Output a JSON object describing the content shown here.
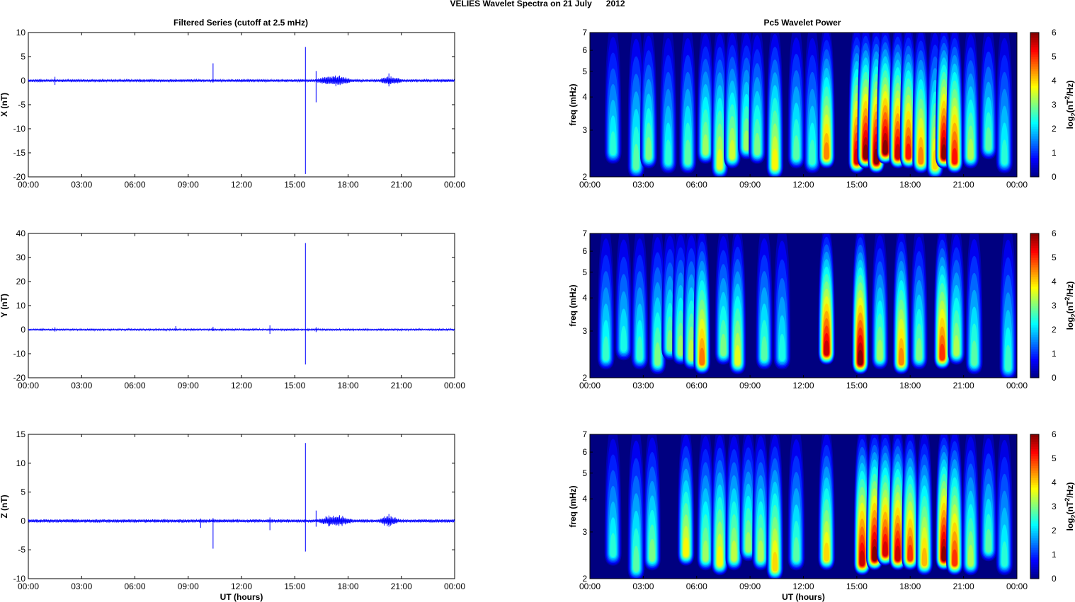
{
  "figure": {
    "suptitle": "VELIES Wavelet Spectra on 21 July      2012",
    "left_title": "Filtered Series (cutoff at 2.5 mHz)",
    "right_title": "Pc5 Wavelet Power"
  },
  "chart_data": [
    {
      "type": "line",
      "panel": "x-filtered",
      "xlabel": "",
      "ylabel": "X (nT)",
      "xticks": [
        "00:00",
        "03:00",
        "06:00",
        "09:00",
        "12:00",
        "15:00",
        "18:00",
        "21:00",
        "00:00"
      ],
      "xlim": [
        0,
        24
      ],
      "ylim": [
        -20,
        10
      ],
      "yticks": [
        10,
        5,
        0,
        -5,
        -10,
        -15,
        -20
      ],
      "color": "#0000ff",
      "noise_amplitude": 0.3,
      "spikes": [
        [
          1.5,
          0.8,
          -0.9
        ],
        [
          10.4,
          3.6,
          -0.4
        ],
        [
          15.6,
          7.0,
          -19.4
        ],
        [
          16.2,
          2.0,
          -4.5
        ],
        [
          20.3,
          1.5,
          -1.2
        ]
      ],
      "wave_packets": [
        [
          16.0,
          18.4,
          1.2
        ],
        [
          19.6,
          21.2,
          1.0
        ]
      ]
    },
    {
      "type": "line",
      "panel": "y-filtered",
      "xlabel": "",
      "ylabel": "Y (nT)",
      "xticks": [
        "00:00",
        "03:00",
        "06:00",
        "09:00",
        "12:00",
        "15:00",
        "18:00",
        "21:00",
        "00:00"
      ],
      "xlim": [
        0,
        24
      ],
      "ylim": [
        -20,
        40
      ],
      "yticks": [
        40,
        30,
        20,
        10,
        0,
        -10,
        -20
      ],
      "color": "#0000ff",
      "noise_amplitude": 0.4,
      "spikes": [
        [
          1.5,
          1.0,
          -0.8
        ],
        [
          8.3,
          1.5,
          -0.5
        ],
        [
          10.4,
          1.2,
          -0.6
        ],
        [
          13.6,
          1.8,
          -1.8
        ],
        [
          15.6,
          36.0,
          -14.5
        ],
        [
          16.2,
          1.0,
          -1.0
        ]
      ],
      "wave_packets": []
    },
    {
      "type": "line",
      "panel": "z-filtered",
      "xlabel": "UT (hours)",
      "ylabel": "Z (nT)",
      "xticks": [
        "00:00",
        "03:00",
        "06:00",
        "09:00",
        "12:00",
        "15:00",
        "18:00",
        "21:00",
        "00:00"
      ],
      "xlim": [
        0,
        24
      ],
      "ylim": [
        -10,
        15
      ],
      "yticks": [
        15,
        10,
        5,
        0,
        -5,
        -10
      ],
      "color": "#0000ff",
      "noise_amplitude": 0.3,
      "spikes": [
        [
          9.7,
          0.4,
          -1.2
        ],
        [
          10.4,
          0.5,
          -4.8
        ],
        [
          13.6,
          0.6,
          -1.6
        ],
        [
          15.6,
          13.5,
          -5.3
        ],
        [
          16.2,
          1.8,
          -1.0
        ],
        [
          20.3,
          1.2,
          -1.0
        ]
      ],
      "wave_packets": [
        [
          16.0,
          18.5,
          1.1
        ],
        [
          19.6,
          21.0,
          1.0
        ]
      ]
    },
    {
      "type": "heatmap",
      "panel": "x-wavelet",
      "xlabel": "",
      "ylabel": "freq (mHz)",
      "xticks": [
        "00:00",
        "03:00",
        "06:00",
        "09:00",
        "12:00",
        "15:00",
        "18:00",
        "21:00",
        "00:00"
      ],
      "xlim": [
        0,
        24
      ],
      "ylim": [
        2,
        7
      ],
      "yscale": "log",
      "yticks": [
        2,
        3,
        4,
        5,
        6,
        7
      ],
      "colorbar": {
        "label": "log2(nT2/Hz)",
        "range": [
          0,
          6
        ],
        "ticks": [
          0,
          1,
          2,
          3,
          4,
          5,
          6
        ],
        "colormap": "jet"
      },
      "bursts": [
        [
          1.3,
          2.5,
          2.5
        ],
        [
          2.6,
          2.2,
          2.8
        ],
        [
          3.3,
          2.4,
          3.0
        ],
        [
          4.4,
          2.3,
          2.5
        ],
        [
          5.5,
          2.3,
          2.8
        ],
        [
          6.5,
          2.5,
          3.2
        ],
        [
          7.3,
          2.2,
          3.6
        ],
        [
          8.0,
          2.4,
          3.5
        ],
        [
          8.8,
          2.6,
          3.2
        ],
        [
          9.4,
          2.5,
          3.0
        ],
        [
          10.4,
          2.2,
          3.8
        ],
        [
          11.6,
          2.4,
          2.8
        ],
        [
          12.5,
          2.3,
          2.6
        ],
        [
          13.3,
          2.4,
          4.5
        ],
        [
          15.0,
          2.3,
          5.5
        ],
        [
          15.5,
          2.4,
          6.0
        ],
        [
          16.1,
          2.3,
          6.0
        ],
        [
          16.6,
          2.5,
          6.0
        ],
        [
          17.3,
          2.4,
          5.6
        ],
        [
          17.9,
          2.4,
          5.2
        ],
        [
          18.6,
          2.3,
          4.5
        ],
        [
          19.4,
          2.2,
          4.0
        ],
        [
          19.9,
          2.4,
          6.0
        ],
        [
          20.5,
          2.3,
          5.2
        ],
        [
          21.4,
          2.4,
          3.3
        ],
        [
          22.4,
          2.6,
          2.8
        ],
        [
          23.3,
          2.3,
          2.5
        ]
      ]
    },
    {
      "type": "heatmap",
      "panel": "y-wavelet",
      "xlabel": "",
      "ylabel": "freq (mHz)",
      "xticks": [
        "00:00",
        "03:00",
        "06:00",
        "09:00",
        "12:00",
        "15:00",
        "18:00",
        "21:00",
        "00:00"
      ],
      "xlim": [
        0,
        24
      ],
      "ylim": [
        2,
        7
      ],
      "yscale": "log",
      "yticks": [
        2,
        3,
        4,
        5,
        6,
        7
      ],
      "colorbar": {
        "label": "log2(nT2/Hz)",
        "range": [
          0,
          6
        ],
        "ticks": [
          0,
          1,
          2,
          3,
          4,
          5,
          6
        ],
        "colormap": "jet"
      },
      "bursts": [
        [
          0.9,
          2.4,
          2.6
        ],
        [
          1.9,
          2.6,
          2.4
        ],
        [
          2.8,
          2.4,
          2.6
        ],
        [
          3.8,
          2.3,
          3.0
        ],
        [
          4.5,
          2.6,
          3.0
        ],
        [
          5.1,
          2.5,
          3.2
        ],
        [
          5.7,
          2.4,
          3.4
        ],
        [
          6.3,
          2.3,
          4.6
        ],
        [
          7.5,
          2.5,
          3.0
        ],
        [
          8.3,
          2.3,
          3.6
        ],
        [
          9.8,
          2.4,
          2.8
        ],
        [
          10.8,
          2.4,
          2.4
        ],
        [
          13.3,
          2.5,
          5.6
        ],
        [
          15.2,
          2.3,
          6.0
        ],
        [
          16.3,
          2.4,
          3.2
        ],
        [
          17.5,
          2.3,
          4.5
        ],
        [
          18.5,
          2.4,
          3.0
        ],
        [
          19.8,
          2.4,
          5.0
        ],
        [
          20.6,
          2.5,
          3.3
        ],
        [
          21.6,
          2.3,
          2.8
        ],
        [
          23.5,
          2.2,
          2.6
        ]
      ]
    },
    {
      "type": "heatmap",
      "panel": "z-wavelet",
      "xlabel": "UT (hours)",
      "ylabel": "freq (mHz)",
      "xticks": [
        "00:00",
        "03:00",
        "06:00",
        "09:00",
        "12:00",
        "15:00",
        "18:00",
        "21:00",
        "00:00"
      ],
      "xlim": [
        0,
        24
      ],
      "ylim": [
        2,
        7
      ],
      "yscale": "log",
      "yticks": [
        2,
        3,
        4,
        5,
        6,
        7
      ],
      "colorbar": {
        "label": "log2(nT2/Hz)",
        "range": [
          0,
          6
        ],
        "ticks": [
          0,
          1,
          2,
          3,
          4,
          5,
          6
        ],
        "colormap": "jet"
      },
      "bursts": [
        [
          1.3,
          2.5,
          2.5
        ],
        [
          2.6,
          2.2,
          2.8
        ],
        [
          3.5,
          2.4,
          3.0
        ],
        [
          5.4,
          2.5,
          3.8
        ],
        [
          6.5,
          2.4,
          3.2
        ],
        [
          7.3,
          2.3,
          3.8
        ],
        [
          8.1,
          2.4,
          3.4
        ],
        [
          8.9,
          2.6,
          3.2
        ],
        [
          9.6,
          2.4,
          3.3
        ],
        [
          10.4,
          2.2,
          4.0
        ],
        [
          11.6,
          2.4,
          2.8
        ],
        [
          13.3,
          2.4,
          4.0
        ],
        [
          15.3,
          2.3,
          5.6
        ],
        [
          16.0,
          2.4,
          6.0
        ],
        [
          16.6,
          2.5,
          5.5
        ],
        [
          17.3,
          2.4,
          5.6
        ],
        [
          18.0,
          2.4,
          5.0
        ],
        [
          18.8,
          2.3,
          4.2
        ],
        [
          19.9,
          2.4,
          6.0
        ],
        [
          20.5,
          2.3,
          5.0
        ],
        [
          21.4,
          2.3,
          3.3
        ],
        [
          22.4,
          2.6,
          2.8
        ],
        [
          23.3,
          2.3,
          2.5
        ]
      ]
    }
  ]
}
